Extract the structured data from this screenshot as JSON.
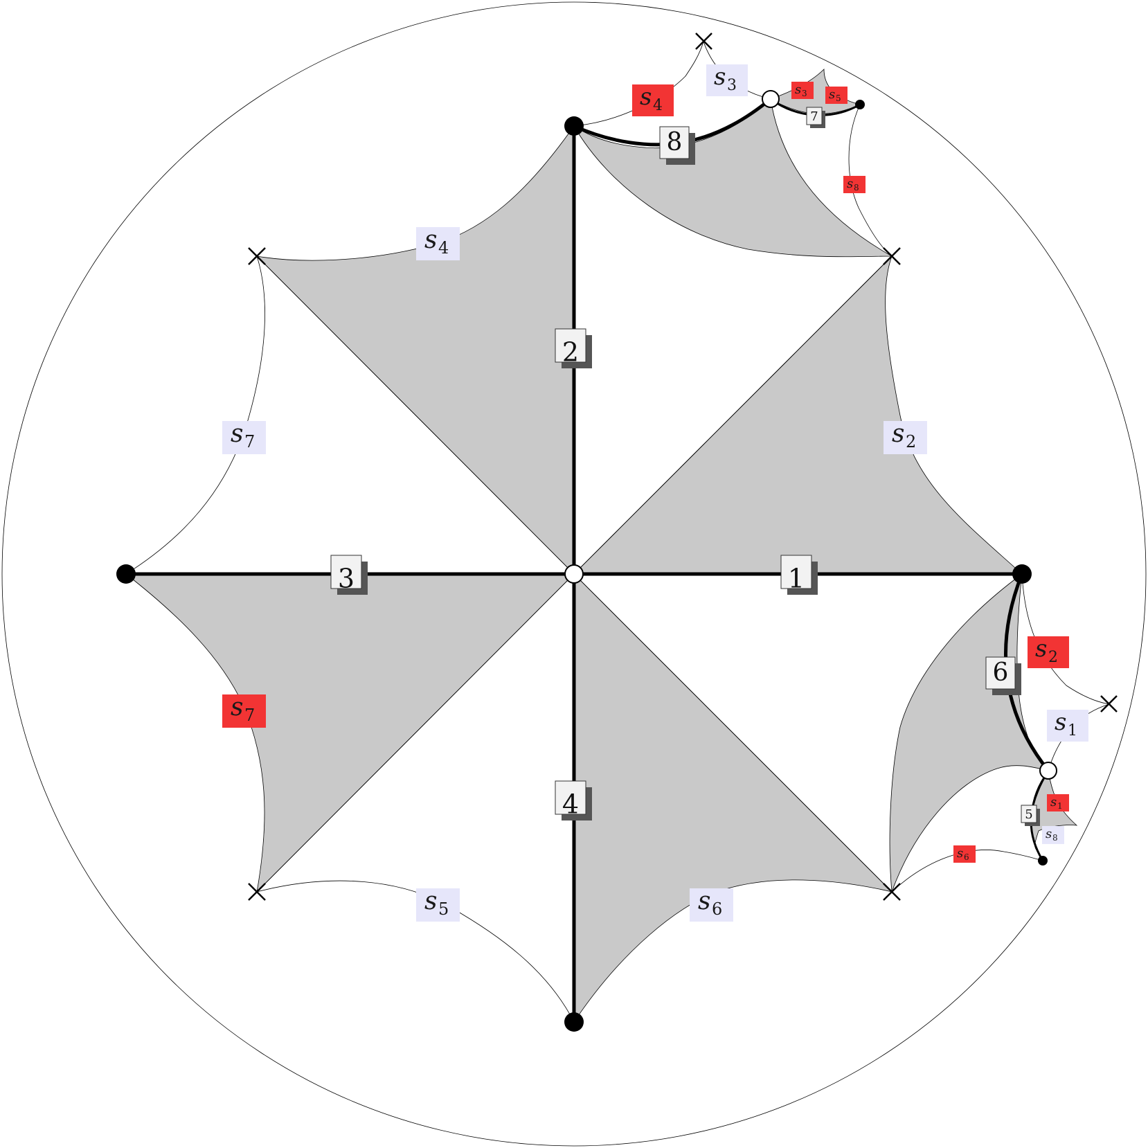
{
  "colors": {
    "shade": "#c9c9c9",
    "red_label": "#f23434",
    "blue_label": "#e6e6fa",
    "number_box": "#f2f2f2",
    "number_shadow": "#555555",
    "edge": "#000000"
  },
  "edge_numbers": {
    "e1": "1",
    "e2": "2",
    "e3": "3",
    "e4": "4",
    "e5": "5",
    "e6": "6",
    "e7": "7",
    "e8": "8"
  },
  "labels": {
    "blue_s2": {
      "base": "s",
      "sub": "2"
    },
    "blue_s4": {
      "base": "s",
      "sub": "4"
    },
    "blue_s7": {
      "base": "s",
      "sub": "7"
    },
    "blue_s5": {
      "base": "s",
      "sub": "5"
    },
    "blue_s6": {
      "base": "s",
      "sub": "6"
    },
    "blue_s3": {
      "base": "s",
      "sub": "3"
    },
    "blue_s1": {
      "base": "s",
      "sub": "1"
    },
    "blue_s8": {
      "base": "s",
      "sub": "8"
    },
    "red_s4": {
      "base": "s",
      "sub": "4"
    },
    "red_s7": {
      "base": "s",
      "sub": "7"
    },
    "red_s2": {
      "base": "s",
      "sub": "2"
    },
    "red_s3": {
      "base": "s",
      "sub": "3"
    },
    "red_s5": {
      "base": "s",
      "sub": "5"
    },
    "red_s8": {
      "base": "s",
      "sub": "8"
    },
    "red_s1": {
      "base": "s",
      "sub": "1"
    },
    "red_s6": {
      "base": "s",
      "sub": "6"
    }
  }
}
